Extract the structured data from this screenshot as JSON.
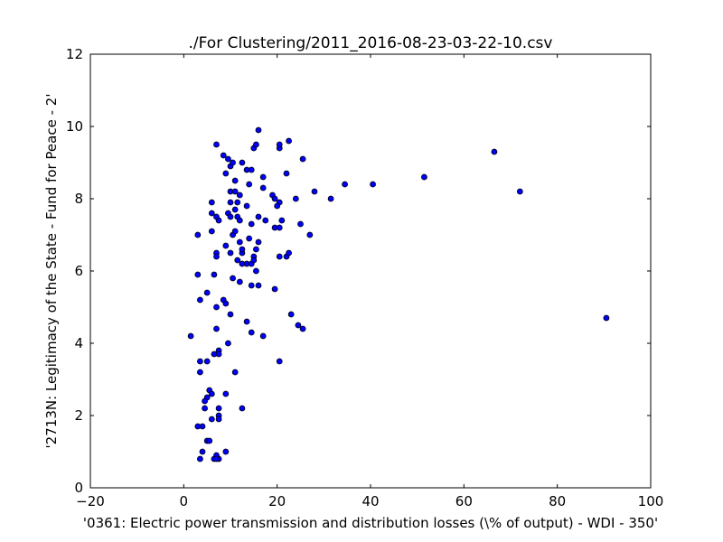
{
  "chart_data": {
    "type": "scatter",
    "title": "./For Clustering/2011_2016-08-23-03-22-10.csv",
    "xlabel": "'0361: Electric power transmission and distribution losses  (\\% of output) - WDI - 350'",
    "ylabel": "'2713N: Legitimacy of the State - Fund for Peace - 2'",
    "xlim": [
      -20,
      100
    ],
    "ylim": [
      0,
      12
    ],
    "xticks": [
      "−20",
      "0",
      "20",
      "40",
      "60",
      "80",
      "100"
    ],
    "yticks": [
      "0",
      "2",
      "4",
      "6",
      "8",
      "10",
      "12"
    ],
    "grid": false,
    "marker_color": "#0000ff",
    "points": [
      [
        7.0,
        9.5
      ],
      [
        8.5,
        9.2
      ],
      [
        9.5,
        9.1
      ],
      [
        10.0,
        8.9
      ],
      [
        10.5,
        9.0
      ],
      [
        12.5,
        9.0
      ],
      [
        13.5,
        8.8
      ],
      [
        14.5,
        8.8
      ],
      [
        15.0,
        9.4
      ],
      [
        15.5,
        9.5
      ],
      [
        16.0,
        9.9
      ],
      [
        20.5,
        9.4
      ],
      [
        20.5,
        9.5
      ],
      [
        22.5,
        9.6
      ],
      [
        25.5,
        9.1
      ],
      [
        9.0,
        8.7
      ],
      [
        11.0,
        8.5
      ],
      [
        17.0,
        8.6
      ],
      [
        22.0,
        8.7
      ],
      [
        14.0,
        8.4
      ],
      [
        17.0,
        8.3
      ],
      [
        10.0,
        8.2
      ],
      [
        11.0,
        8.2
      ],
      [
        12.0,
        8.1
      ],
      [
        19.0,
        8.1
      ],
      [
        19.5,
        8.0
      ],
      [
        20.5,
        7.9
      ],
      [
        20.0,
        7.8
      ],
      [
        24.0,
        8.0
      ],
      [
        28.0,
        8.2
      ],
      [
        31.5,
        8.0
      ],
      [
        34.5,
        8.4
      ],
      [
        40.5,
        8.4
      ],
      [
        51.5,
        8.6
      ],
      [
        66.5,
        9.3
      ],
      [
        72.0,
        8.2
      ],
      [
        6.0,
        7.9
      ],
      [
        10.0,
        7.9
      ],
      [
        11.5,
        7.9
      ],
      [
        13.5,
        7.8
      ],
      [
        6.0,
        7.6
      ],
      [
        7.0,
        7.5
      ],
      [
        7.5,
        7.4
      ],
      [
        9.5,
        7.6
      ],
      [
        10.0,
        7.5
      ],
      [
        11.0,
        7.7
      ],
      [
        11.5,
        7.5
      ],
      [
        12.0,
        7.4
      ],
      [
        14.5,
        7.3
      ],
      [
        16.0,
        7.5
      ],
      [
        17.5,
        7.4
      ],
      [
        19.5,
        7.2
      ],
      [
        20.5,
        7.2
      ],
      [
        21.0,
        7.4
      ],
      [
        25.0,
        7.3
      ],
      [
        27.0,
        7.0
      ],
      [
        3.0,
        7.0
      ],
      [
        6.0,
        7.1
      ],
      [
        10.5,
        7.0
      ],
      [
        11.0,
        7.1
      ],
      [
        12.5,
        6.5
      ],
      [
        12.0,
        6.8
      ],
      [
        14.0,
        6.9
      ],
      [
        15.5,
        6.6
      ],
      [
        16.0,
        6.8
      ],
      [
        7.0,
        6.5
      ],
      [
        7.0,
        6.4
      ],
      [
        9.0,
        6.7
      ],
      [
        10.0,
        6.5
      ],
      [
        12.5,
        6.6
      ],
      [
        15.0,
        6.4
      ],
      [
        20.5,
        6.4
      ],
      [
        22.0,
        6.4
      ],
      [
        22.5,
        6.5
      ],
      [
        11.5,
        6.3
      ],
      [
        12.5,
        6.2
      ],
      [
        13.5,
        6.2
      ],
      [
        14.5,
        6.2
      ],
      [
        15.0,
        6.3
      ],
      [
        3.0,
        5.9
      ],
      [
        6.5,
        5.9
      ],
      [
        10.5,
        5.8
      ],
      [
        12.0,
        5.7
      ],
      [
        14.5,
        5.6
      ],
      [
        15.5,
        6.0
      ],
      [
        16.0,
        5.6
      ],
      [
        19.5,
        5.5
      ],
      [
        5.0,
        5.4
      ],
      [
        3.5,
        5.2
      ],
      [
        8.5,
        5.2
      ],
      [
        9.0,
        5.1
      ],
      [
        7.0,
        5.0
      ],
      [
        10.0,
        4.8
      ],
      [
        13.5,
        4.6
      ],
      [
        23.0,
        4.8
      ],
      [
        24.5,
        4.5
      ],
      [
        25.5,
        4.4
      ],
      [
        90.5,
        4.7
      ],
      [
        1.5,
        4.2
      ],
      [
        7.0,
        4.4
      ],
      [
        14.5,
        4.3
      ],
      [
        17.0,
        4.2
      ],
      [
        9.5,
        4.0
      ],
      [
        7.5,
        3.8
      ],
      [
        6.5,
        3.7
      ],
      [
        7.5,
        3.7
      ],
      [
        3.5,
        3.5
      ],
      [
        5.0,
        3.5
      ],
      [
        20.5,
        3.5
      ],
      [
        3.5,
        3.2
      ],
      [
        11.0,
        3.2
      ],
      [
        5.5,
        2.7
      ],
      [
        6.0,
        2.6
      ],
      [
        9.0,
        2.6
      ],
      [
        5.0,
        2.5
      ],
      [
        4.5,
        2.4
      ],
      [
        4.5,
        2.2
      ],
      [
        7.5,
        2.2
      ],
      [
        12.5,
        2.2
      ],
      [
        7.5,
        2.0
      ],
      [
        6.0,
        1.9
      ],
      [
        7.5,
        1.9
      ],
      [
        3.0,
        1.7
      ],
      [
        4.0,
        1.7
      ],
      [
        5.0,
        1.3
      ],
      [
        5.5,
        1.3
      ],
      [
        4.0,
        1.0
      ],
      [
        9.0,
        1.0
      ],
      [
        3.5,
        0.8
      ],
      [
        6.5,
        0.8
      ],
      [
        7.0,
        0.9
      ],
      [
        7.5,
        0.8
      ],
      [
        7.0,
        0.8
      ]
    ]
  }
}
